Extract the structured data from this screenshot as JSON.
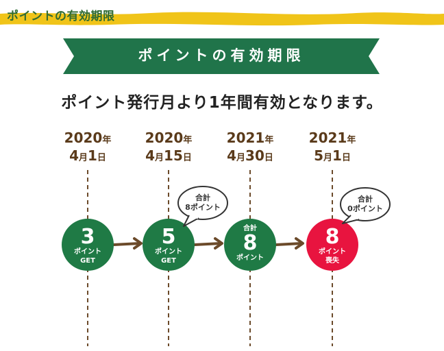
{
  "header": {
    "title": "ポイントの有効期限"
  },
  "ribbon": {
    "title": "ポイントの有効期限"
  },
  "lead_text": "ポイント発行月より1年間有効となります。",
  "colors": {
    "header_band": "#f0c419",
    "ribbon_green": "#20744a",
    "circle_green": "#1f7a45",
    "circle_red": "#e8143f",
    "arrow_brown": "#6b4a2a",
    "dash_brown": "#6b4a2a"
  },
  "timeline": [
    {
      "year": "2020",
      "year_unit": "年",
      "month": "4",
      "month_unit": "月",
      "day": "1",
      "day_unit": "日",
      "circle": {
        "top": "",
        "big": "3",
        "bottom1": "ポイント",
        "bottom2": "GET",
        "color": "green"
      },
      "bubble": null
    },
    {
      "year": "2020",
      "year_unit": "年",
      "month": "4",
      "month_unit": "月",
      "day": "15",
      "day_unit": "日",
      "circle": {
        "top": "",
        "big": "5",
        "bottom1": "ポイント",
        "bottom2": "GET",
        "color": "green"
      },
      "bubble": {
        "line1": "合計",
        "line2": "8ポイント"
      }
    },
    {
      "year": "2021",
      "year_unit": "年",
      "month": "4",
      "month_unit": "月",
      "day": "30",
      "day_unit": "日",
      "circle": {
        "top": "合計",
        "big": "8",
        "bottom1": "ポイント",
        "bottom2": "",
        "color": "green"
      },
      "bubble": null
    },
    {
      "year": "2021",
      "year_unit": "年",
      "month": "5",
      "month_unit": "月",
      "day": "1",
      "day_unit": "日",
      "circle": {
        "top": "",
        "big": "8",
        "bottom1": "ポイント",
        "bottom2": "喪失",
        "color": "red"
      },
      "bubble": {
        "line1": "合計",
        "line2": "0ポイント"
      }
    }
  ]
}
